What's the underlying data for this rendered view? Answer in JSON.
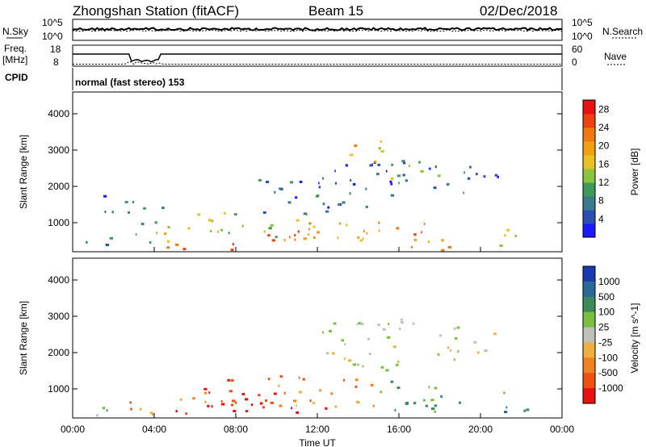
{
  "header": {
    "station": "Zhongshan Station (fitACF)",
    "beam": "Beam 15",
    "date": "02/Dec/2018"
  },
  "sky_panel": {
    "left_label": "N.Sky",
    "right_label": "N.Search",
    "left_ticks": [
      "10^5",
      "10^0"
    ],
    "right_ticks": [
      "10^5",
      "10^0"
    ]
  },
  "freq_panel": {
    "left_label_line1": "Freq.",
    "left_label_line2": "[MHz]",
    "left_ticks": [
      "18",
      "8"
    ],
    "right_label": "Nave",
    "right_ticks": [
      "60",
      "0"
    ],
    "cpid_label": "CPID",
    "mode_text": "normal (fast stereo) 153"
  },
  "chart_data": [
    {
      "type": "heatmap",
      "title": "",
      "ylabel": "Slant Range [km]",
      "xlabel": "",
      "x_ticks": [
        "00:00",
        "04:00",
        "08:00",
        "12:00",
        "16:00",
        "20:00",
        "00:00"
      ],
      "y_ticks": [
        "1000",
        "2000",
        "3000",
        "4000"
      ],
      "ylim": [
        200,
        4600
      ],
      "xlim_hours": [
        0,
        24
      ],
      "colorbar": {
        "label": "Power [dB]",
        "ticks": [
          "4",
          "8",
          "12",
          "16",
          "20",
          "24",
          "28"
        ],
        "range": [
          0,
          30
        ],
        "colors": [
          "#1a1aff",
          "#2b4fb3",
          "#3a7a8a",
          "#3f9a5a",
          "#8bc53f",
          "#e8c020",
          "#f2a010",
          "#f07a10",
          "#ee4010",
          "#e81010"
        ]
      },
      "regions": [
        {
          "t0": 0.3,
          "t1": 3.0,
          "r0": 250,
          "r1": 600,
          "v": 6
        },
        {
          "t0": 1.5,
          "t1": 2.4,
          "r0": 1200,
          "r1": 1900,
          "v": 5
        },
        {
          "t0": 2.5,
          "t1": 4.5,
          "r0": 800,
          "r1": 1600,
          "v": 9
        },
        {
          "t0": 3.0,
          "t1": 5.0,
          "r0": 300,
          "r1": 700,
          "v": 14
        },
        {
          "t0": 4.0,
          "t1": 7.5,
          "r0": 500,
          "r1": 1100,
          "v": 15
        },
        {
          "t0": 4.5,
          "t1": 8.5,
          "r0": 220,
          "r1": 520,
          "v": 24
        },
        {
          "t0": 6.0,
          "t1": 11.5,
          "r0": 600,
          "r1": 1300,
          "v": 13
        },
        {
          "t0": 8.0,
          "t1": 12.5,
          "r0": 300,
          "r1": 800,
          "v": 22
        },
        {
          "t0": 9.0,
          "t1": 13.0,
          "r0": 1200,
          "r1": 2200,
          "v": 7
        },
        {
          "t0": 11.0,
          "t1": 14.5,
          "r0": 500,
          "r1": 1300,
          "v": 19
        },
        {
          "t0": 12.0,
          "t1": 16.0,
          "r0": 1400,
          "r1": 2800,
          "v": 6
        },
        {
          "t0": 13.5,
          "t1": 15.5,
          "r0": 2500,
          "r1": 3300,
          "v": 17
        },
        {
          "t0": 14.0,
          "t1": 17.5,
          "r0": 600,
          "r1": 1200,
          "v": 23
        },
        {
          "t0": 15.5,
          "t1": 18.0,
          "r0": 1700,
          "r1": 2700,
          "v": 8
        },
        {
          "t0": 16.5,
          "t1": 19.0,
          "r0": 200,
          "r1": 800,
          "v": 18
        },
        {
          "t0": 17.5,
          "t1": 21.0,
          "r0": 1800,
          "r1": 2600,
          "v": 5
        },
        {
          "t0": 20.5,
          "t1": 22.0,
          "r0": 300,
          "r1": 900,
          "v": 14
        },
        {
          "t0": 15.0,
          "t1": 16.8,
          "r0": 2200,
          "r1": 2600,
          "v": 14
        }
      ]
    },
    {
      "type": "heatmap",
      "title": "",
      "ylabel": "Slant Range [km]",
      "xlabel": "Time UT",
      "x_ticks": [
        "00:00",
        "04:00",
        "08:00",
        "12:00",
        "16:00",
        "20:00",
        "00:00"
      ],
      "y_ticks": [
        "1000",
        "2000",
        "3000",
        "4000"
      ],
      "ylim": [
        200,
        4600
      ],
      "xlim_hours": [
        0,
        24
      ],
      "colorbar": {
        "label": "Velocity [m s^-1]",
        "ticks": [
          "1000",
          "500",
          "100",
          "25",
          "-25",
          "-100",
          "-500",
          "-1000"
        ],
        "colors": [
          "#1a3ab0",
          "#2a6a9a",
          "#3a8a5a",
          "#7ac040",
          "#c0c0b8",
          "#f0b040",
          "#f08020",
          "#f05010",
          "#e81010"
        ]
      },
      "regions": [
        {
          "t0": 0.2,
          "t1": 2.5,
          "r0": 220,
          "r1": 500,
          "v": 3
        },
        {
          "t0": 2.5,
          "t1": 6.0,
          "r0": 300,
          "r1": 900,
          "v": 6
        },
        {
          "t0": 4.5,
          "t1": 9.0,
          "r0": 220,
          "r1": 600,
          "v": 8
        },
        {
          "t0": 6.0,
          "t1": 11.5,
          "r0": 600,
          "r1": 1300,
          "v": 7
        },
        {
          "t0": 8.0,
          "t1": 12.5,
          "r0": 300,
          "r1": 900,
          "v": 8
        },
        {
          "t0": 10.0,
          "t1": 15.0,
          "r0": 500,
          "r1": 1400,
          "v": 6
        },
        {
          "t0": 12.0,
          "t1": 16.0,
          "r0": 1400,
          "r1": 2800,
          "v": 4
        },
        {
          "t0": 14.0,
          "t1": 17.0,
          "r0": 2300,
          "r1": 3000,
          "v": 4
        },
        {
          "t0": 15.0,
          "t1": 18.0,
          "r0": 400,
          "r1": 1200,
          "v": 2
        },
        {
          "t0": 16.5,
          "t1": 19.5,
          "r0": 200,
          "r1": 800,
          "v": 2
        },
        {
          "t0": 17.5,
          "t1": 21.0,
          "r0": 1800,
          "r1": 2700,
          "v": 4
        },
        {
          "t0": 20.5,
          "t1": 22.5,
          "r0": 300,
          "r1": 900,
          "v": 2
        }
      ]
    }
  ]
}
